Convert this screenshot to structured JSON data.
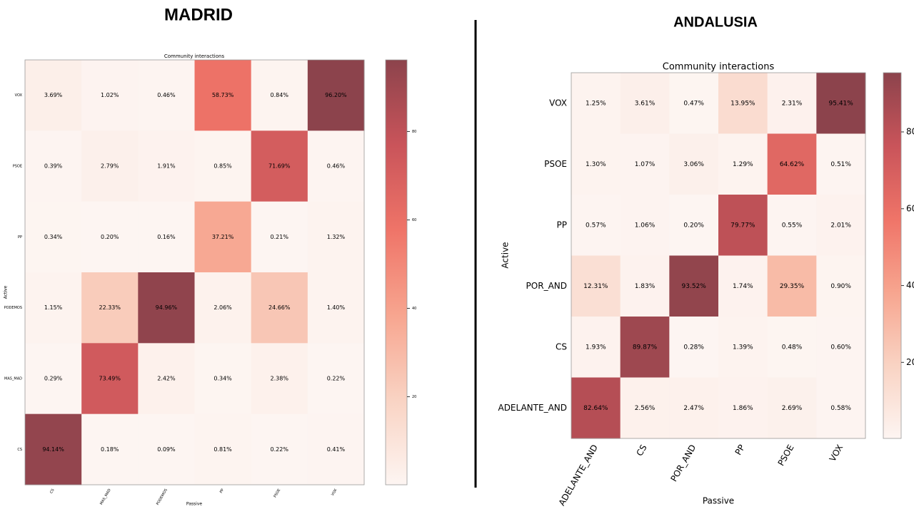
{
  "chart_data": [
    {
      "type": "heatmap",
      "heading": "MADRID",
      "title": "Community interactions",
      "xlabel": "Passive",
      "ylabel": "Active",
      "x": [
        "CS",
        "MAS_MAD",
        "PODEMOS",
        "PP",
        "PSOE",
        "VOX"
      ],
      "y": [
        "VOX",
        "PSOE",
        "PP",
        "PODEMOS",
        "MAS_MAD",
        "CS"
      ],
      "values": [
        [
          3.69,
          1.02,
          0.46,
          58.73,
          0.84,
          96.2
        ],
        [
          0.39,
          2.79,
          1.91,
          0.85,
          71.69,
          0.46
        ],
        [
          0.34,
          0.2,
          0.16,
          37.21,
          0.21,
          1.32
        ],
        [
          1.15,
          22.33,
          94.96,
          2.06,
          24.66,
          1.4
        ],
        [
          0.29,
          73.49,
          2.42,
          0.34,
          2.38,
          0.22
        ],
        [
          94.14,
          0.18,
          0.09,
          0.81,
          0.22,
          0.41
        ]
      ],
      "value_labels": [
        [
          "3.69%",
          "1.02%",
          "0.46%",
          "58.73%",
          "0.84%",
          "96.20%"
        ],
        [
          "0.39%",
          "2.79%",
          "1.91%",
          "0.85%",
          "71.69%",
          "0.46%"
        ],
        [
          "0.34%",
          "0.20%",
          "0.16%",
          "37.21%",
          "0.21%",
          "1.32%"
        ],
        [
          "1.15%",
          "22.33%",
          "94.96%",
          "2.06%",
          "24.66%",
          "1.40%"
        ],
        [
          "0.29%",
          "73.49%",
          "2.42%",
          "0.34%",
          "2.38%",
          "0.22%"
        ],
        [
          "94.14%",
          "0.18%",
          "0.09%",
          "0.81%",
          "0.22%",
          "0.41%"
        ]
      ],
      "clim": [
        0.09,
        96.2
      ],
      "cticks": [
        20,
        40,
        60,
        80
      ],
      "colormap": [
        "#fdf5f2",
        "#f9d3c3",
        "#f7a58f",
        "#ef7468",
        "#c9545a",
        "#8c434c"
      ]
    },
    {
      "type": "heatmap",
      "heading": "ANDALUSIA",
      "title": "Community interactions",
      "xlabel": "Passive",
      "ylabel": "Active",
      "x": [
        "ADELANTE_AND",
        "CS",
        "POR_AND",
        "PP",
        "PSOE",
        "VOX"
      ],
      "y": [
        "VOX",
        "PSOE",
        "PP",
        "POR_AND",
        "CS",
        "ADELANTE_AND"
      ],
      "values": [
        [
          1.25,
          3.61,
          0.47,
          13.95,
          2.31,
          95.41
        ],
        [
          1.3,
          1.07,
          3.06,
          1.29,
          64.62,
          0.51
        ],
        [
          0.57,
          1.06,
          0.2,
          79.77,
          0.55,
          2.01
        ],
        [
          12.31,
          1.83,
          93.52,
          1.74,
          29.35,
          0.9
        ],
        [
          1.93,
          89.87,
          0.28,
          1.39,
          0.48,
          0.6
        ],
        [
          82.64,
          2.56,
          2.47,
          1.86,
          2.69,
          0.58
        ]
      ],
      "value_labels": [
        [
          "1.25%",
          "3.61%",
          "0.47%",
          "13.95%",
          "2.31%",
          "95.41%"
        ],
        [
          "1.30%",
          "1.07%",
          "3.06%",
          "1.29%",
          "64.62%",
          "0.51%"
        ],
        [
          "0.57%",
          "1.06%",
          "0.20%",
          "79.77%",
          "0.55%",
          "2.01%"
        ],
        [
          "12.31%",
          "1.83%",
          "93.52%",
          "1.74%",
          "29.35%",
          "0.90%"
        ],
        [
          "1.93%",
          "89.87%",
          "0.28%",
          "1.39%",
          "0.48%",
          "0.60%"
        ],
        [
          "82.64%",
          "2.56%",
          "2.47%",
          "1.86%",
          "2.69%",
          "0.58%"
        ]
      ],
      "clim": [
        0.2,
        95.41
      ],
      "cticks": [
        20,
        40,
        60,
        80
      ],
      "colormap": [
        "#fdf5f2",
        "#f9d3c3",
        "#f7a58f",
        "#ef7468",
        "#c9545a",
        "#8c434c"
      ]
    }
  ]
}
